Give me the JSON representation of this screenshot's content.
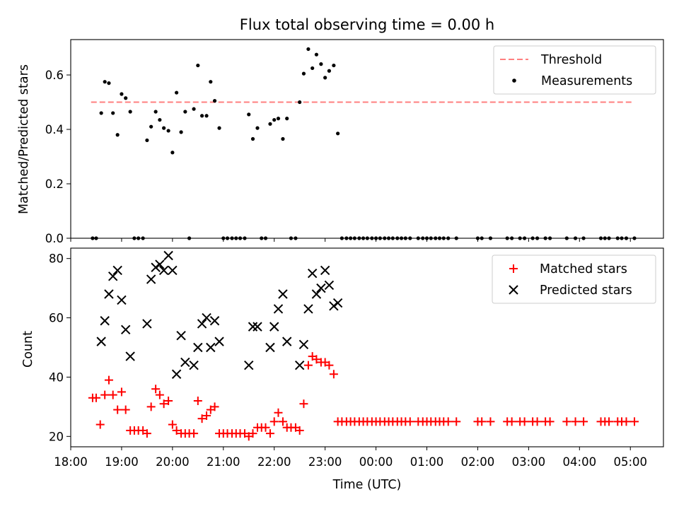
{
  "chart_data": [
    {
      "type": "scatter",
      "title": "Flux total observing time = 0.00 h",
      "ylabel": "Matched/Predicted stars",
      "xlabel": "",
      "xlim": [
        18.0,
        5.65
      ],
      "ylim": [
        0.0,
        0.73
      ],
      "yticks": [
        0.0,
        0.2,
        0.4,
        0.6
      ],
      "ytick_labels": [
        "0.0",
        "0.2",
        "0.4",
        "0.6"
      ],
      "legend_position": "top-right",
      "threshold": {
        "name": "Threshold",
        "value": 0.5,
        "x_range": [
          18.4,
          5.05
        ],
        "color": "#ff7f7f"
      },
      "series": [
        {
          "name": "Measurements",
          "color": "#000000",
          "marker": "dot",
          "points": [
            [
              18.43,
              0.0
            ],
            [
              18.5,
              0.0
            ],
            [
              18.6,
              0.46
            ],
            [
              18.67,
              0.575
            ],
            [
              18.75,
              0.57
            ],
            [
              18.83,
              0.46
            ],
            [
              18.92,
              0.38
            ],
            [
              19.0,
              0.53
            ],
            [
              19.08,
              0.515
            ],
            [
              19.17,
              0.465
            ],
            [
              19.25,
              0.0
            ],
            [
              19.33,
              0.0
            ],
            [
              19.42,
              0.0
            ],
            [
              19.5,
              0.36
            ],
            [
              19.58,
              0.41
            ],
            [
              19.67,
              0.465
            ],
            [
              19.75,
              0.435
            ],
            [
              19.83,
              0.405
            ],
            [
              19.92,
              0.395
            ],
            [
              20.0,
              0.315
            ],
            [
              20.08,
              0.535
            ],
            [
              20.17,
              0.39
            ],
            [
              20.25,
              0.465
            ],
            [
              20.33,
              0.0
            ],
            [
              20.42,
              0.475
            ],
            [
              20.5,
              0.635
            ],
            [
              20.58,
              0.45
            ],
            [
              20.67,
              0.45
            ],
            [
              20.75,
              0.575
            ],
            [
              20.83,
              0.505
            ],
            [
              20.92,
              0.405
            ],
            [
              21.0,
              0.0
            ],
            [
              21.08,
              0.0
            ],
            [
              21.17,
              0.0
            ],
            [
              21.25,
              0.0
            ],
            [
              21.33,
              0.0
            ],
            [
              21.42,
              0.0
            ],
            [
              21.5,
              0.455
            ],
            [
              21.58,
              0.365
            ],
            [
              21.67,
              0.405
            ],
            [
              21.75,
              0.0
            ],
            [
              21.83,
              0.0
            ],
            [
              21.92,
              0.42
            ],
            [
              22.0,
              0.435
            ],
            [
              22.08,
              0.44
            ],
            [
              22.17,
              0.365
            ],
            [
              22.25,
              0.44
            ],
            [
              22.33,
              0.0
            ],
            [
              22.42,
              0.0
            ],
            [
              22.5,
              0.5
            ],
            [
              22.58,
              0.605
            ],
            [
              22.67,
              0.695
            ],
            [
              22.75,
              0.625
            ],
            [
              22.83,
              0.675
            ],
            [
              22.92,
              0.64
            ],
            [
              23.0,
              0.59
            ],
            [
              23.08,
              0.615
            ],
            [
              23.17,
              0.635
            ],
            [
              23.25,
              0.385
            ],
            [
              23.33,
              0.0
            ],
            [
              23.42,
              0.0
            ],
            [
              23.5,
              0.0
            ],
            [
              23.58,
              0.0
            ],
            [
              23.67,
              0.0
            ],
            [
              23.75,
              0.0
            ],
            [
              23.83,
              0.0
            ],
            [
              23.92,
              0.0
            ],
            [
              0.0,
              0.0
            ],
            [
              0.08,
              0.0
            ],
            [
              0.17,
              0.0
            ],
            [
              0.25,
              0.0
            ],
            [
              0.33,
              0.0
            ],
            [
              0.42,
              0.0
            ],
            [
              0.5,
              0.0
            ],
            [
              0.58,
              0.0
            ],
            [
              0.67,
              0.0
            ],
            [
              0.83,
              0.0
            ],
            [
              0.92,
              0.0
            ],
            [
              1.0,
              0.0
            ],
            [
              1.08,
              0.0
            ],
            [
              1.17,
              0.0
            ],
            [
              1.25,
              0.0
            ],
            [
              1.33,
              0.0
            ],
            [
              1.42,
              0.0
            ],
            [
              1.58,
              0.0
            ],
            [
              2.0,
              0.0
            ],
            [
              2.08,
              0.0
            ],
            [
              2.25,
              0.0
            ],
            [
              2.58,
              0.0
            ],
            [
              2.67,
              0.0
            ],
            [
              2.83,
              0.0
            ],
            [
              2.92,
              0.0
            ],
            [
              3.08,
              0.0
            ],
            [
              3.17,
              0.0
            ],
            [
              3.33,
              0.0
            ],
            [
              3.42,
              0.0
            ],
            [
              3.75,
              0.0
            ],
            [
              3.92,
              0.0
            ],
            [
              4.08,
              0.0
            ],
            [
              4.42,
              0.0
            ],
            [
              4.5,
              0.0
            ],
            [
              4.58,
              0.0
            ],
            [
              4.75,
              0.0
            ],
            [
              4.83,
              0.0
            ],
            [
              4.92,
              0.0
            ],
            [
              5.08,
              0.0
            ]
          ]
        }
      ]
    },
    {
      "type": "scatter",
      "title": "",
      "ylabel": "Count",
      "xlabel": "Time (UTC)",
      "xlim": [
        18.0,
        5.65
      ],
      "ylim": [
        16.5,
        83.5
      ],
      "yticks": [
        20,
        40,
        60,
        80
      ],
      "ytick_labels": [
        "20",
        "40",
        "60",
        "80"
      ],
      "xticks": [
        18,
        19,
        20,
        21,
        22,
        23,
        0,
        1,
        2,
        3,
        4,
        5
      ],
      "xtick_labels": [
        "18:00",
        "19:00",
        "20:00",
        "21:00",
        "22:00",
        "23:00",
        "00:00",
        "01:00",
        "02:00",
        "03:00",
        "04:00",
        "05:00"
      ],
      "legend_position": "top-right",
      "series": [
        {
          "name": "Matched stars",
          "color": "#ff0000",
          "marker": "plus",
          "points": [
            [
              18.43,
              33
            ],
            [
              18.5,
              33
            ],
            [
              18.58,
              24
            ],
            [
              18.67,
              34
            ],
            [
              18.75,
              39
            ],
            [
              18.83,
              34
            ],
            [
              18.92,
              29
            ],
            [
              19.0,
              35
            ],
            [
              19.08,
              29
            ],
            [
              19.17,
              22
            ],
            [
              19.25,
              22
            ],
            [
              19.33,
              22
            ],
            [
              19.42,
              22
            ],
            [
              19.5,
              21
            ],
            [
              19.58,
              30
            ],
            [
              19.67,
              36
            ],
            [
              19.75,
              34
            ],
            [
              19.83,
              31
            ],
            [
              19.92,
              32
            ],
            [
              20.0,
              24
            ],
            [
              20.08,
              22
            ],
            [
              20.17,
              21
            ],
            [
              20.25,
              21
            ],
            [
              20.33,
              21
            ],
            [
              20.42,
              21
            ],
            [
              20.5,
              32
            ],
            [
              20.58,
              26
            ],
            [
              20.67,
              27
            ],
            [
              20.75,
              29
            ],
            [
              20.83,
              30
            ],
            [
              20.92,
              21
            ],
            [
              21.0,
              21
            ],
            [
              21.08,
              21
            ],
            [
              21.17,
              21
            ],
            [
              21.25,
              21
            ],
            [
              21.33,
              21
            ],
            [
              21.42,
              21
            ],
            [
              21.5,
              20
            ],
            [
              21.58,
              21
            ],
            [
              21.67,
              23
            ],
            [
              21.75,
              23
            ],
            [
              21.83,
              23
            ],
            [
              21.92,
              21
            ],
            [
              22.0,
              25
            ],
            [
              22.08,
              28
            ],
            [
              22.17,
              25
            ],
            [
              22.25,
              23
            ],
            [
              22.33,
              23
            ],
            [
              22.42,
              23
            ],
            [
              22.5,
              22
            ],
            [
              22.58,
              31
            ],
            [
              22.67,
              44
            ],
            [
              22.75,
              47
            ],
            [
              22.83,
              46
            ],
            [
              22.92,
              45
            ],
            [
              23.0,
              45
            ],
            [
              23.08,
              44
            ],
            [
              23.17,
              41
            ],
            [
              23.25,
              25
            ],
            [
              23.33,
              25
            ],
            [
              23.42,
              25
            ],
            [
              23.5,
              25
            ],
            [
              23.58,
              25
            ],
            [
              23.67,
              25
            ],
            [
              23.75,
              25
            ],
            [
              23.83,
              25
            ],
            [
              23.92,
              25
            ],
            [
              0.0,
              25
            ],
            [
              0.08,
              25
            ],
            [
              0.17,
              25
            ],
            [
              0.25,
              25
            ],
            [
              0.33,
              25
            ],
            [
              0.42,
              25
            ],
            [
              0.5,
              25
            ],
            [
              0.58,
              25
            ],
            [
              0.67,
              25
            ],
            [
              0.83,
              25
            ],
            [
              0.92,
              25
            ],
            [
              1.0,
              25
            ],
            [
              1.08,
              25
            ],
            [
              1.17,
              25
            ],
            [
              1.25,
              25
            ],
            [
              1.33,
              25
            ],
            [
              1.42,
              25
            ],
            [
              1.58,
              25
            ],
            [
              2.0,
              25
            ],
            [
              2.08,
              25
            ],
            [
              2.25,
              25
            ],
            [
              2.58,
              25
            ],
            [
              2.67,
              25
            ],
            [
              2.83,
              25
            ],
            [
              2.92,
              25
            ],
            [
              3.08,
              25
            ],
            [
              3.17,
              25
            ],
            [
              3.33,
              25
            ],
            [
              3.42,
              25
            ],
            [
              3.75,
              25
            ],
            [
              3.92,
              25
            ],
            [
              4.08,
              25
            ],
            [
              4.42,
              25
            ],
            [
              4.5,
              25
            ],
            [
              4.58,
              25
            ],
            [
              4.75,
              25
            ],
            [
              4.83,
              25
            ],
            [
              4.92,
              25
            ],
            [
              5.08,
              25
            ]
          ]
        },
        {
          "name": "Predicted stars",
          "color": "#000000",
          "marker": "x",
          "points": [
            [
              18.6,
              52
            ],
            [
              18.67,
              59
            ],
            [
              18.75,
              68
            ],
            [
              18.83,
              74
            ],
            [
              18.92,
              76
            ],
            [
              19.0,
              66
            ],
            [
              19.08,
              56
            ],
            [
              19.17,
              47
            ],
            [
              19.5,
              58
            ],
            [
              19.58,
              73
            ],
            [
              19.67,
              77
            ],
            [
              19.75,
              78
            ],
            [
              19.83,
              76
            ],
            [
              19.92,
              81
            ],
            [
              20.0,
              76
            ],
            [
              20.08,
              41
            ],
            [
              20.17,
              54
            ],
            [
              20.25,
              45
            ],
            [
              20.42,
              44
            ],
            [
              20.5,
              50
            ],
            [
              20.58,
              58
            ],
            [
              20.67,
              60
            ],
            [
              20.75,
              50
            ],
            [
              20.83,
              59
            ],
            [
              20.92,
              52
            ],
            [
              21.5,
              44
            ],
            [
              21.58,
              57
            ],
            [
              21.67,
              57
            ],
            [
              21.92,
              50
            ],
            [
              22.0,
              57
            ],
            [
              22.08,
              63
            ],
            [
              22.17,
              68
            ],
            [
              22.25,
              52
            ],
            [
              22.5,
              44
            ],
            [
              22.58,
              51
            ],
            [
              22.67,
              63
            ],
            [
              22.75,
              75
            ],
            [
              22.83,
              68
            ],
            [
              22.92,
              70
            ],
            [
              23.0,
              76
            ],
            [
              23.08,
              71
            ],
            [
              23.17,
              64
            ],
            [
              23.25,
              65
            ]
          ]
        }
      ]
    }
  ]
}
